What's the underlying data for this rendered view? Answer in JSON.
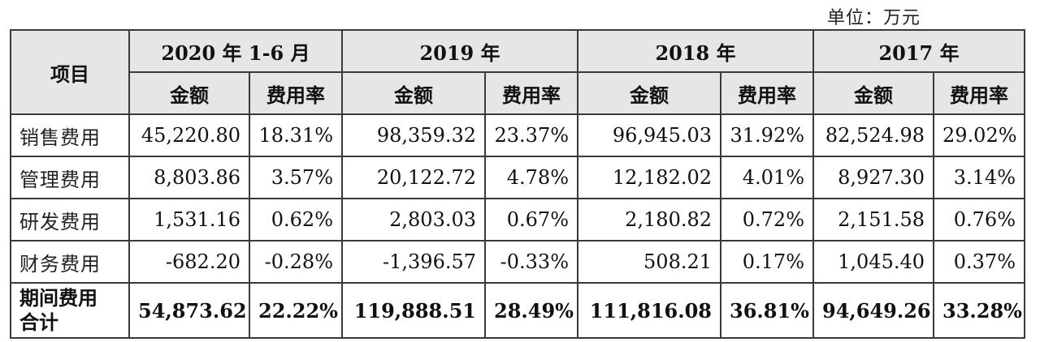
{
  "unit": "单位：万元",
  "header": {
    "item": "项目",
    "periods": [
      "2020 年 1-6 月",
      "2019 年",
      "2018 年",
      "2017 年"
    ],
    "amount": "金额",
    "rate": "费用率"
  },
  "rows": [
    {
      "label": "销售费用",
      "values": [
        "45,220.80",
        "18.31%",
        "98,359.32",
        "23.37%",
        "96,945.03",
        "31.92%",
        "82,524.98",
        "29.02%"
      ]
    },
    {
      "label": "管理费用",
      "values": [
        "8,803.86",
        "3.57%",
        "20,122.72",
        "4.78%",
        "12,182.02",
        "4.01%",
        "8,927.30",
        "3.14%"
      ]
    },
    {
      "label": "研发费用",
      "values": [
        "1,531.16",
        "0.62%",
        "2,803.03",
        "0.67%",
        "2,180.82",
        "0.72%",
        "2,151.58",
        "0.76%"
      ]
    },
    {
      "label": "财务费用",
      "values": [
        "-682.20",
        "-0.28%",
        "-1,396.57",
        "-0.33%",
        "508.21",
        "0.17%",
        "1,045.40",
        "0.37%"
      ]
    }
  ],
  "total": {
    "label_line1": "期间费用",
    "label_line2": "合计",
    "values": [
      "54,873.62",
      "22.22%",
      "119,888.51",
      "28.49%",
      "111,816.08",
      "36.81%",
      "94,649.26",
      "33.28%"
    ]
  }
}
